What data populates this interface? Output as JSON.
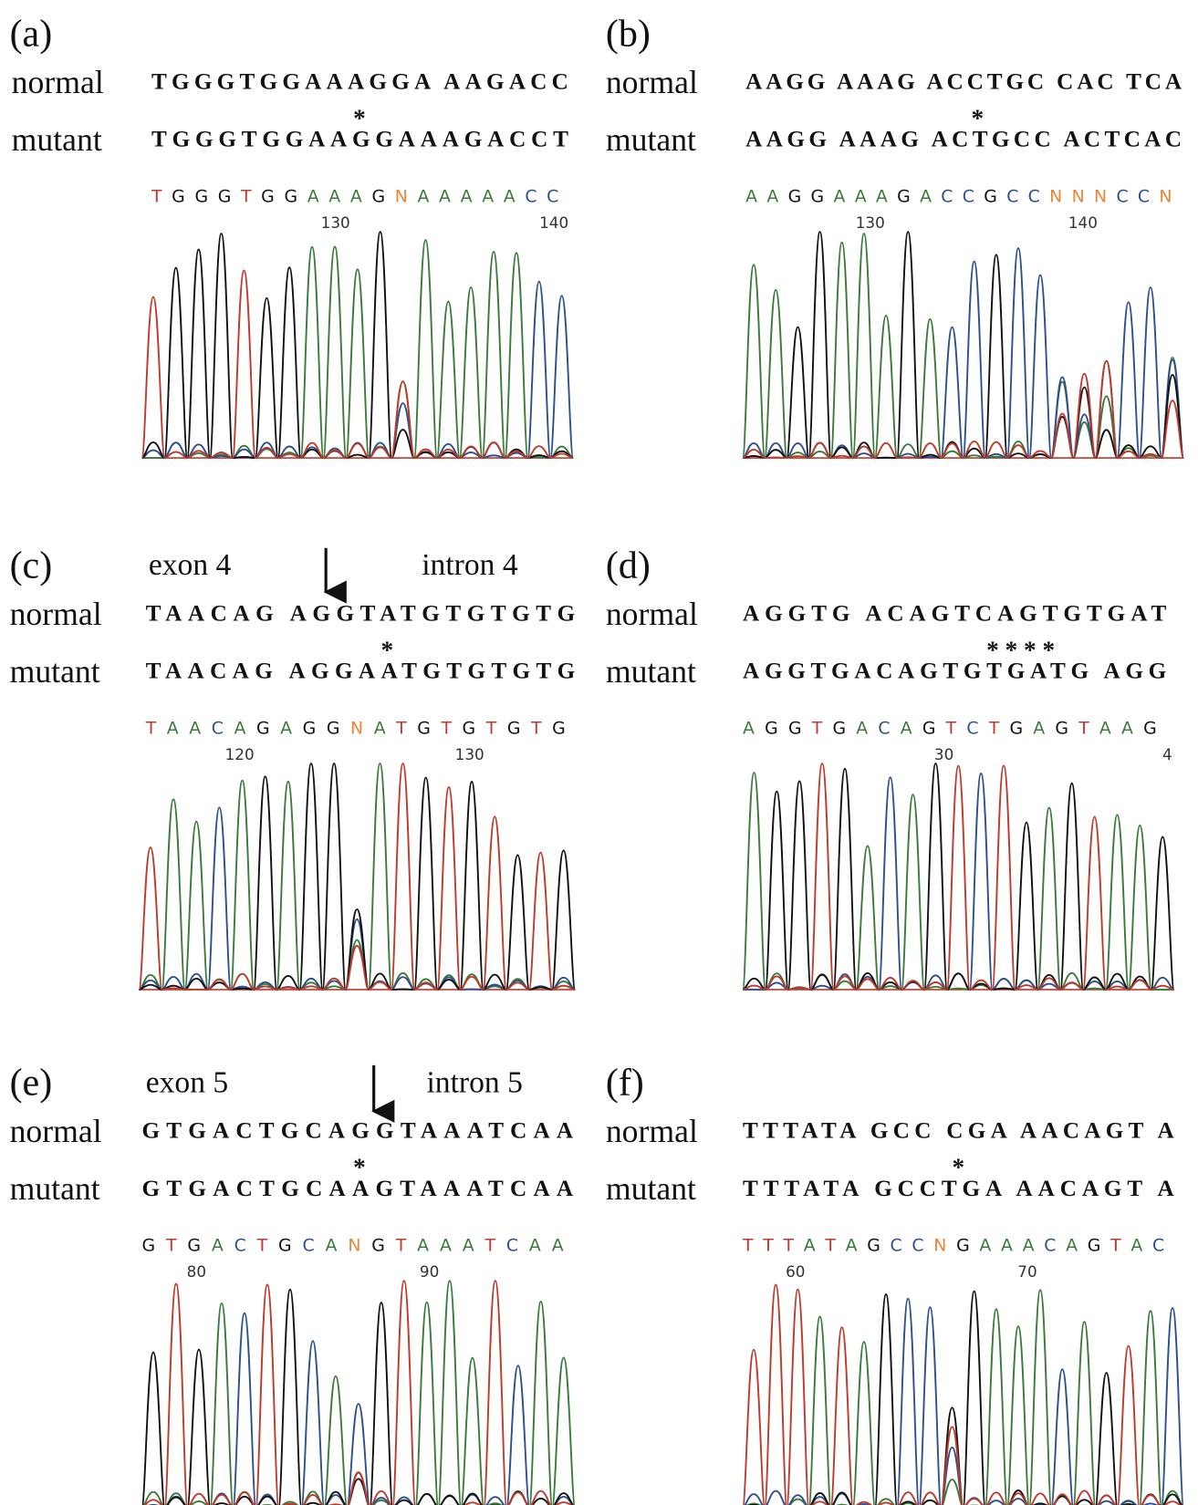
{
  "panels": [
    {
      "label": "(a)",
      "normal_label": "normal",
      "normal": "TGGGTGGAAAGGA AAGACC",
      "mark": "*",
      "mutant_label": "mutant",
      "mutant": "TGGGTGGAAGGAAAGACCT",
      "base_calls": "TGGGTGGAAAGNAAAAACC",
      "positions": [
        130,
        140
      ]
    },
    {
      "label": "(b)",
      "normal_label": "normal",
      "normal": "AAGG AAAG ACCTGC CAC TCA",
      "mark": "*",
      "mutant_label": "mutant",
      "mutant": "AAGG AAAG ACTGCC ACTCAC",
      "base_calls": "AAGGAAAGACCGCCNNNCCN",
      "positions": [
        130,
        140
      ]
    },
    {
      "label": "(c)",
      "exon": "exon 4",
      "intron": "intron 4",
      "normal_label": "normal",
      "normal": "TAACAG AGGTATGTGTGTG",
      "mark": "*",
      "mutant_label": "mutant",
      "mutant": "TAACAG AGGAATGTGTGTG",
      "base_calls": "TAACAGAGGNATGTGTGTG",
      "positions": [
        120,
        130
      ]
    },
    {
      "label": "(d)",
      "normal_label": "normal",
      "normal": "AGGTG ACAGTCAGTGTGAT",
      "mark": "* * * *",
      "mutant_label": "mutant",
      "mutant": "AGGTGACAGTGTGATG AGG",
      "base_calls": "AGGTGACAGTCTGAGTAAG",
      "positions": [
        30,
        4
      ]
    },
    {
      "label": "(e)",
      "exon": "exon 5",
      "intron": "intron 5",
      "normal_label": "normal",
      "normal": "GTGACTGCAGGTAAATCAA",
      "mark": "*",
      "mutant_label": "mutant",
      "mutant": "GTGACTGCAAGTAAATCAA",
      "base_calls": "GTGACTGCANGTAAATCAA",
      "positions": [
        80,
        90
      ]
    },
    {
      "label": "(f)",
      "normal_label": "normal",
      "normal": "TTTATA GCC CGA AACAGT A",
      "mark": "*",
      "mutant_label": "mutant",
      "mutant": "TTTATA GCCTGA AACAGT A",
      "base_calls": "TTTATAGCCNGAAACAGTAC",
      "positions": [
        60,
        70
      ]
    }
  ]
}
